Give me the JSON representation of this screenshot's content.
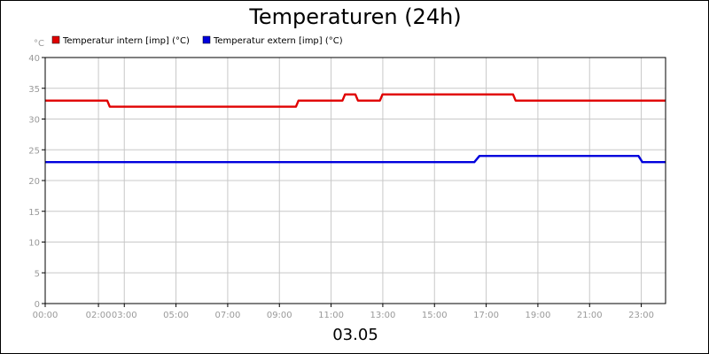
{
  "chart_data": {
    "type": "line",
    "title": "Temperaturen (24h)",
    "xlabel": "03.05",
    "ylabel": "°C",
    "ylim": [
      0,
      40
    ],
    "yticks": [
      0,
      5,
      10,
      15,
      20,
      25,
      30,
      35,
      40
    ],
    "xlim": [
      0,
      24
    ],
    "xtick_labels": [
      {
        "label": "00:00",
        "value": 0
      },
      {
        "label": "02:00",
        "value": 2.06
      },
      {
        "label": "03:00",
        "value": 3.06
      },
      {
        "label": "05:00",
        "value": 5.06
      },
      {
        "label": "07:00",
        "value": 7.06
      },
      {
        "label": "09:00",
        "value": 9.06
      },
      {
        "label": "11:00",
        "value": 11.06
      },
      {
        "label": "13:00",
        "value": 13.06
      },
      {
        "label": "15:00",
        "value": 15.06
      },
      {
        "label": "17:00",
        "value": 17.06
      },
      {
        "label": "19:00",
        "value": 19.06
      },
      {
        "label": "21:00",
        "value": 21.06
      },
      {
        "label": "23:00",
        "value": 23.06
      }
    ],
    "grid": true,
    "legend_position": "top-left",
    "series": [
      {
        "name": "Temperatur intern [imp] (°C)",
        "color": "#e00000",
        "points": [
          [
            0,
            33
          ],
          [
            2.4,
            33
          ],
          [
            2.5,
            32
          ],
          [
            9.7,
            32
          ],
          [
            9.8,
            33
          ],
          [
            11.5,
            33
          ],
          [
            11.6,
            34
          ],
          [
            12.0,
            34
          ],
          [
            12.1,
            33
          ],
          [
            12.95,
            33
          ],
          [
            13.05,
            34
          ],
          [
            18.1,
            34
          ],
          [
            18.2,
            33
          ],
          [
            24,
            33
          ]
        ]
      },
      {
        "name": "Temperatur extern [imp] (°C)",
        "color": "#0000dd",
        "points": [
          [
            0,
            23
          ],
          [
            16.6,
            23
          ],
          [
            16.8,
            24
          ],
          [
            22.95,
            24
          ],
          [
            23.1,
            23
          ],
          [
            24,
            23
          ]
        ]
      }
    ]
  }
}
